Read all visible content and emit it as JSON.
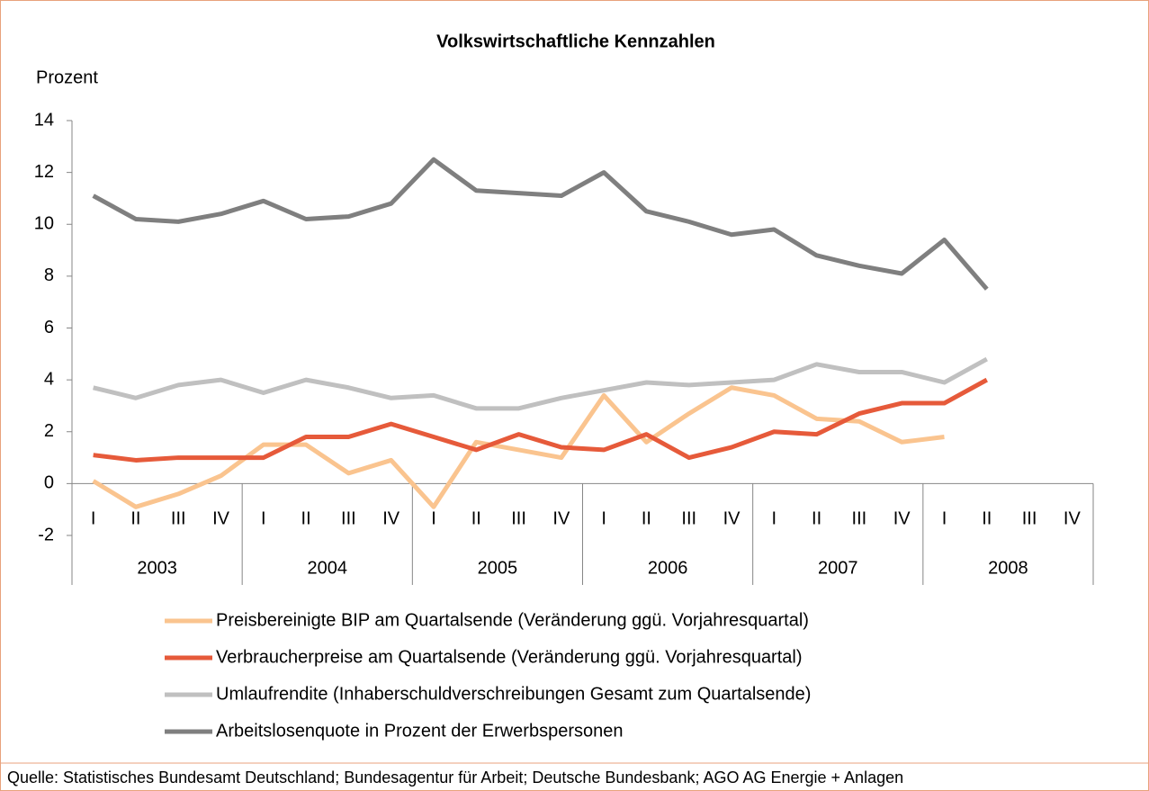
{
  "chart_data": {
    "type": "line",
    "title": "Volkswirtschaftliche Kennzahlen",
    "y_label": "Prozent",
    "categories": [
      "I",
      "II",
      "III",
      "IV",
      "I",
      "II",
      "III",
      "IV",
      "I",
      "II",
      "III",
      "IV",
      "I",
      "II",
      "III",
      "IV",
      "I",
      "II",
      "III",
      "IV",
      "I",
      "II",
      "III",
      "IV"
    ],
    "groups": [
      "2003",
      "2004",
      "2005",
      "2006",
      "2007",
      "2008"
    ],
    "ylim": [
      -2,
      14
    ],
    "yticks": [
      -2,
      0,
      2,
      4,
      6,
      8,
      10,
      12,
      14
    ],
    "grid": false,
    "legend": "bottom",
    "series": [
      {
        "name": "Preisbereinigte BIP am Quartalsende (Veränderung ggü. Vorjahresquartal)",
        "color": "#fac48f",
        "values": [
          0.1,
          -0.9,
          -0.4,
          0.3,
          1.5,
          1.5,
          0.4,
          0.9,
          -0.9,
          1.6,
          1.3,
          1.0,
          3.4,
          1.6,
          2.7,
          3.7,
          3.4,
          2.5,
          2.4,
          1.6,
          1.8,
          null,
          null,
          null
        ]
      },
      {
        "name": "Verbraucherpreise am Quartalsende (Veränderung ggü. Vorjahresquartal)",
        "color": "#e65a3a",
        "values": [
          1.1,
          0.9,
          1.0,
          1.0,
          1.0,
          1.8,
          1.8,
          2.3,
          1.8,
          1.3,
          1.9,
          1.4,
          1.3,
          1.9,
          1.0,
          1.4,
          2.0,
          1.9,
          2.7,
          3.1,
          3.1,
          4.0,
          null,
          null
        ]
      },
      {
        "name": "Umlaufrendite (Inhaberschuldverschreibungen Gesamt zum Quartalsende)",
        "color": "#c0c0c0",
        "values": [
          3.7,
          3.3,
          3.8,
          4.0,
          3.5,
          4.0,
          3.7,
          3.3,
          3.4,
          2.9,
          2.9,
          3.3,
          3.6,
          3.9,
          3.8,
          3.9,
          4.0,
          4.6,
          4.3,
          4.3,
          3.9,
          4.8,
          null,
          null
        ]
      },
      {
        "name": "Arbeitslosenquote in Prozent der Erwerbspersonen",
        "color": "#7f7f7f",
        "values": [
          11.1,
          10.2,
          10.1,
          10.4,
          10.9,
          10.2,
          10.3,
          10.8,
          12.5,
          11.3,
          11.2,
          11.1,
          12.0,
          10.5,
          10.1,
          9.6,
          9.8,
          8.8,
          8.4,
          8.1,
          9.4,
          7.5,
          null,
          null
        ]
      }
    ]
  },
  "source": "Quelle: Statistisches Bundesamt Deutschland; Bundesagentur für Arbeit; Deutsche Bundesbank; AGO AG Energie + Anlagen"
}
